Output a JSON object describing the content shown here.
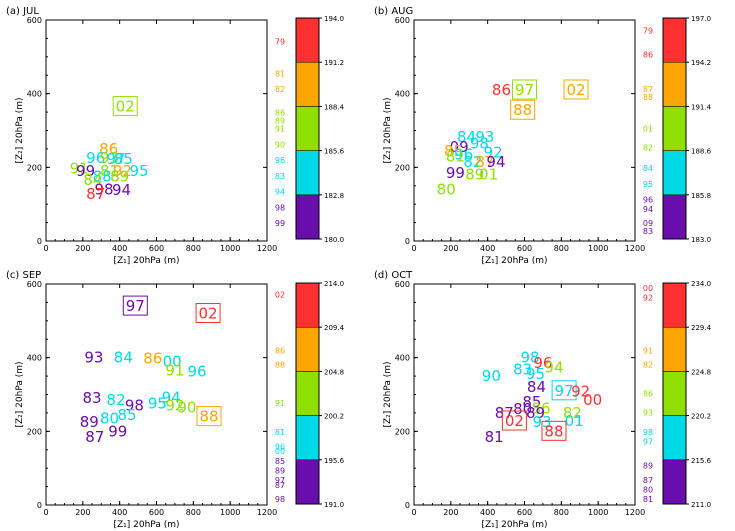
{
  "colorbar_colors": [
    "#6a0dad",
    "#00d9e8",
    "#8fe000",
    "#ffa500",
    "#ff3030"
  ],
  "chart_data": [
    {
      "type": "scatter",
      "title": "(a) JUL",
      "xlabel": "[Z₁]  20hPa  (m)",
      "ylabel": "[Z₂]  20hPa  (m)",
      "xlim": [
        0,
        1200
      ],
      "ylim": [
        0,
        600
      ],
      "xticks": [
        0,
        200,
        400,
        600,
        800,
        1000,
        1200
      ],
      "yticks": [
        0,
        200,
        400,
        600
      ],
      "colorbar": {
        "min": 180.0,
        "max": 194.0,
        "labels": [
          "194.0",
          "191.2",
          "188.4",
          "185.6",
          "182.8",
          "180.0"
        ]
      },
      "points": [
        {
          "label": "02",
          "x": 430,
          "y": 365,
          "c": 188.0,
          "boxed": true
        },
        {
          "label": "86",
          "x": 340,
          "y": 250,
          "c": 189.0
        },
        {
          "label": "96",
          "x": 270,
          "y": 225,
          "c": 184.0
        },
        {
          "label": "93",
          "x": 345,
          "y": 225,
          "c": 186.0
        },
        {
          "label": "97",
          "x": 380,
          "y": 222,
          "c": 184.0
        },
        {
          "label": "85",
          "x": 420,
          "y": 222,
          "c": 184.0
        },
        {
          "label": "91",
          "x": 180,
          "y": 197,
          "c": 187.0
        },
        {
          "label": "99",
          "x": 215,
          "y": 190,
          "c": 181.0
        },
        {
          "label": "95",
          "x": 505,
          "y": 190,
          "c": 183.0
        },
        {
          "label": "81",
          "x": 345,
          "y": 190,
          "c": 186.0
        },
        {
          "label": "92",
          "x": 415,
          "y": 190,
          "c": 189.0
        },
        {
          "label": "88",
          "x": 305,
          "y": 175,
          "c": 184.0
        },
        {
          "label": "84",
          "x": 255,
          "y": 165,
          "c": 186.0
        },
        {
          "label": "89",
          "x": 400,
          "y": 175,
          "c": 187.0
        },
        {
          "label": "98",
          "x": 315,
          "y": 140,
          "c": 180.5
        },
        {
          "label": "94",
          "x": 410,
          "y": 138,
          "c": 181.0
        },
        {
          "label": "87",
          "x": 270,
          "y": 128,
          "c": 192.0
        }
      ],
      "side_labels": [
        {
          "label": "79",
          "c": 192.5
        },
        {
          "label": "81",
          "c": 190.5
        },
        {
          "label": "82",
          "c": 189.5
        },
        {
          "label": "86",
          "c": 188.0
        },
        {
          "label": "89",
          "c": 187.5
        },
        {
          "label": "91",
          "c": 187.0
        },
        {
          "label": "90",
          "c": 186.0
        },
        {
          "label": "96",
          "c": 185.0
        },
        {
          "label": "83",
          "c": 184.0
        },
        {
          "label": "94",
          "c": 183.0
        },
        {
          "label": "98",
          "c": 182.0
        },
        {
          "label": "99",
          "c": 181.0
        }
      ]
    },
    {
      "type": "scatter",
      "title": "(b) AUG",
      "xlabel": "[Z₁]  20hPa  (m)",
      "ylabel": "[Z₂]  20hPa  (m)",
      "xlim": [
        0,
        1200
      ],
      "ylim": [
        0,
        600
      ],
      "xticks": [
        0,
        200,
        400,
        600,
        800,
        1000,
        1200
      ],
      "yticks": [
        0,
        200,
        400,
        600
      ],
      "colorbar": {
        "min": 183.0,
        "max": 197.0,
        "labels": [
          "197.0",
          "194.2",
          "191.4",
          "188.6",
          "185.8",
          "183.0"
        ]
      },
      "points": [
        {
          "label": "86",
          "x": 475,
          "y": 410,
          "c": 195.0
        },
        {
          "label": "97",
          "x": 600,
          "y": 410,
          "c": 190.0,
          "boxed": true
        },
        {
          "label": "02",
          "x": 880,
          "y": 410,
          "c": 192.0,
          "boxed": true
        },
        {
          "label": "88",
          "x": 590,
          "y": 355,
          "c": 192.5,
          "boxed": true
        },
        {
          "label": "84",
          "x": 285,
          "y": 283,
          "c": 187.5
        },
        {
          "label": "93",
          "x": 385,
          "y": 283,
          "c": 187.0
        },
        {
          "label": "98",
          "x": 355,
          "y": 265,
          "c": 187.0
        },
        {
          "label": "09",
          "x": 245,
          "y": 255,
          "c": 184.0
        },
        {
          "label": "85",
          "x": 215,
          "y": 245,
          "c": 192.0
        },
        {
          "label": "92",
          "x": 430,
          "y": 240,
          "c": 186.5
        },
        {
          "label": "96",
          "x": 270,
          "y": 235,
          "c": 187.0
        },
        {
          "label": "81",
          "x": 225,
          "y": 230,
          "c": 191.0
        },
        {
          "label": "82",
          "x": 320,
          "y": 215,
          "c": 186.0
        },
        {
          "label": "87",
          "x": 385,
          "y": 215,
          "c": 192.0
        },
        {
          "label": "94",
          "x": 445,
          "y": 215,
          "c": 184.0
        },
        {
          "label": "99",
          "x": 225,
          "y": 185,
          "c": 183.5
        },
        {
          "label": "89",
          "x": 330,
          "y": 180,
          "c": 190.0
        },
        {
          "label": "01",
          "x": 405,
          "y": 180,
          "c": 190.0
        },
        {
          "label": "80",
          "x": 175,
          "y": 140,
          "c": 190.0
        }
      ],
      "side_labels": [
        {
          "label": "79",
          "c": 196.2
        },
        {
          "label": "86",
          "c": 194.7
        },
        {
          "label": "87",
          "c": 192.5
        },
        {
          "label": "88",
          "c": 192.0
        },
        {
          "label": "01",
          "c": 190.0
        },
        {
          "label": "82",
          "c": 188.8
        },
        {
          "label": "84",
          "c": 187.5
        },
        {
          "label": "95",
          "c": 186.5
        },
        {
          "label": "96",
          "c": 185.5
        },
        {
          "label": "94",
          "c": 184.9
        },
        {
          "label": "09",
          "c": 184.0
        },
        {
          "label": "83",
          "c": 183.5
        }
      ]
    },
    {
      "type": "scatter",
      "title": "(c) SEP",
      "xlabel": "[Z₁]  20hPa  (m)",
      "ylabel": "[Z₂]  20hPa  (m)",
      "xlim": [
        0,
        1200
      ],
      "ylim": [
        0,
        600
      ],
      "xticks": [
        0,
        200,
        400,
        600,
        800,
        1000,
        1200
      ],
      "yticks": [
        0,
        200,
        400,
        600
      ],
      "colorbar": {
        "min": 191.0,
        "max": 214.0,
        "labels": [
          "214.0",
          "209.4",
          "204.8",
          "200.2",
          "195.6",
          "191.0"
        ]
      },
      "points": [
        {
          "label": "97",
          "x": 485,
          "y": 540,
          "c": 192.0,
          "boxed": true
        },
        {
          "label": "02",
          "x": 880,
          "y": 520,
          "c": 212.5,
          "boxed": true
        },
        {
          "label": "93",
          "x": 260,
          "y": 400,
          "c": 192.5
        },
        {
          "label": "84",
          "x": 420,
          "y": 400,
          "c": 198.0
        },
        {
          "label": "86",
          "x": 580,
          "y": 398,
          "c": 207.0
        },
        {
          "label": "00",
          "x": 685,
          "y": 390,
          "c": 198.0
        },
        {
          "label": "91",
          "x": 700,
          "y": 365,
          "c": 202.0
        },
        {
          "label": "96",
          "x": 820,
          "y": 362,
          "c": 198.0
        },
        {
          "label": "83",
          "x": 250,
          "y": 290,
          "c": 192.5
        },
        {
          "label": "94",
          "x": 680,
          "y": 292,
          "c": 199.0
        },
        {
          "label": "82",
          "x": 380,
          "y": 285,
          "c": 198.0
        },
        {
          "label": "95",
          "x": 605,
          "y": 275,
          "c": 199.0
        },
        {
          "label": "92",
          "x": 700,
          "y": 270,
          "c": 201.0
        },
        {
          "label": "98",
          "x": 480,
          "y": 270,
          "c": 192.0
        },
        {
          "label": "90",
          "x": 765,
          "y": 265,
          "c": 203.0
        },
        {
          "label": "88",
          "x": 885,
          "y": 240,
          "c": 206.0,
          "boxed": true
        },
        {
          "label": "85",
          "x": 440,
          "y": 245,
          "c": 198.0
        },
        {
          "label": "80",
          "x": 345,
          "y": 235,
          "c": 197.0
        },
        {
          "label": "89",
          "x": 235,
          "y": 225,
          "c": 193.0
        },
        {
          "label": "99",
          "x": 390,
          "y": 200,
          "c": 193.5
        },
        {
          "label": "87",
          "x": 265,
          "y": 185,
          "c": 193.0
        }
      ],
      "side_labels": [
        {
          "label": "02",
          "c": 212.8
        },
        {
          "label": "86",
          "c": 207.0
        },
        {
          "label": "88",
          "c": 205.5
        },
        {
          "label": "91",
          "c": 201.5
        },
        {
          "label": "81",
          "c": 198.5
        },
        {
          "label": "96",
          "c": 197.0
        },
        {
          "label": "00",
          "c": 196.5
        },
        {
          "label": "85",
          "c": 195.5
        },
        {
          "label": "89",
          "c": 194.5
        },
        {
          "label": "97",
          "c": 193.5
        },
        {
          "label": "87",
          "c": 193.0
        },
        {
          "label": "98",
          "c": 191.5
        }
      ]
    },
    {
      "type": "scatter",
      "title": "(d) OCT",
      "xlabel": "[Z₁]  20hPa  (m)",
      "ylabel": "[Z₂]  20hPa  (m)",
      "xlim": [
        0,
        1200
      ],
      "ylim": [
        0,
        600
      ],
      "xticks": [
        0,
        200,
        400,
        600,
        800,
        1000,
        1200
      ],
      "yticks": [
        0,
        200,
        400,
        600
      ],
      "colorbar": {
        "min": 211.0,
        "max": 234.0,
        "labels": [
          "234.0",
          "229.4",
          "224.8",
          "220.2",
          "215.6",
          "211.0"
        ]
      },
      "points": [
        {
          "label": "98",
          "x": 630,
          "y": 400,
          "c": 218.0
        },
        {
          "label": "96",
          "x": 700,
          "y": 385,
          "c": 231.5
        },
        {
          "label": "83",
          "x": 590,
          "y": 368,
          "c": 218.0
        },
        {
          "label": "94",
          "x": 760,
          "y": 373,
          "c": 222.0
        },
        {
          "label": "95",
          "x": 660,
          "y": 355,
          "c": 218.0
        },
        {
          "label": "90",
          "x": 420,
          "y": 350,
          "c": 218.0
        },
        {
          "label": "84",
          "x": 665,
          "y": 320,
          "c": 212.0
        },
        {
          "label": "97",
          "x": 815,
          "y": 310,
          "c": 218.0,
          "boxed": true
        },
        {
          "label": "92",
          "x": 905,
          "y": 308,
          "c": 231.0
        },
        {
          "label": "00",
          "x": 970,
          "y": 285,
          "c": 232.0
        },
        {
          "label": "85",
          "x": 640,
          "y": 280,
          "c": 213.0
        },
        {
          "label": "86",
          "x": 690,
          "y": 262,
          "c": 222.0
        },
        {
          "label": "89",
          "x": 660,
          "y": 250,
          "c": 212.0
        },
        {
          "label": "87",
          "x": 490,
          "y": 250,
          "c": 212.5
        },
        {
          "label": "80",
          "x": 590,
          "y": 260,
          "c": 213.0
        },
        {
          "label": "82",
          "x": 860,
          "y": 250,
          "c": 223.0
        },
        {
          "label": "02",
          "x": 545,
          "y": 228,
          "c": 233.0,
          "boxed": true
        },
        {
          "label": "93",
          "x": 695,
          "y": 225,
          "c": 218.0
        },
        {
          "label": "01",
          "x": 870,
          "y": 228,
          "c": 219.0
        },
        {
          "label": "88",
          "x": 760,
          "y": 200,
          "c": 232.5,
          "boxed": true
        },
        {
          "label": "81",
          "x": 435,
          "y": 185,
          "c": 212.0
        }
      ],
      "side_labels": [
        {
          "label": "00",
          "c": 233.5
        },
        {
          "label": "92",
          "c": 232.5
        },
        {
          "label": "91",
          "c": 227.0
        },
        {
          "label": "82",
          "c": 225.5
        },
        {
          "label": "86",
          "c": 222.5
        },
        {
          "label": "93",
          "c": 220.5
        },
        {
          "label": "98",
          "c": 218.5
        },
        {
          "label": "97",
          "c": 217.5
        },
        {
          "label": "89",
          "c": 215.0
        },
        {
          "label": "87",
          "c": 213.5
        },
        {
          "label": "80",
          "c": 212.5
        },
        {
          "label": "81",
          "c": 211.5
        }
      ]
    }
  ]
}
